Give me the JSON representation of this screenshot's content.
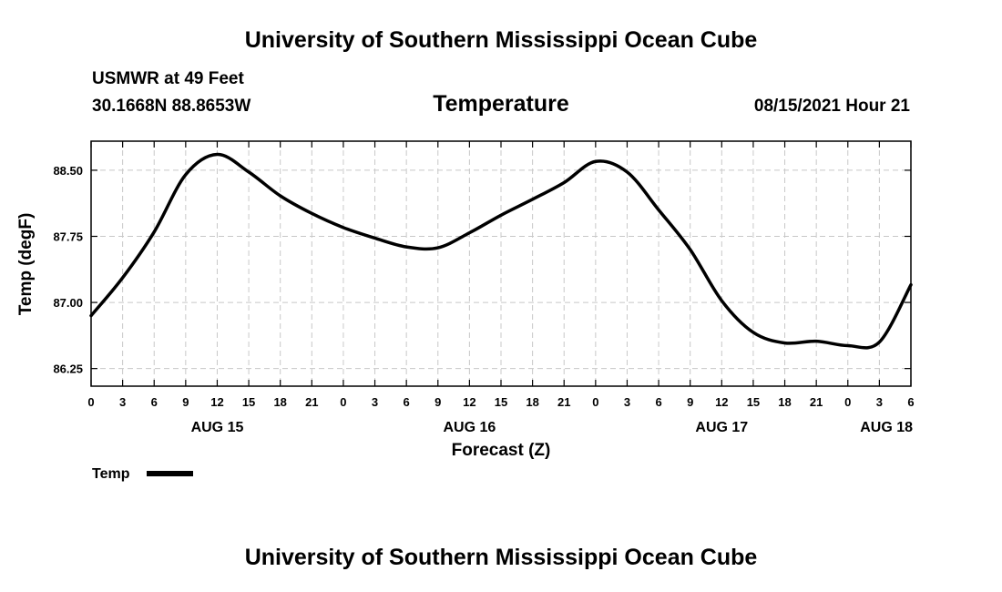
{
  "header": {
    "title": "University of Southern Mississippi Ocean Cube",
    "station": "USMWR at 49 Feet",
    "coords": "30.1668N  88.8653W",
    "datetime": "08/15/2021 Hour 21"
  },
  "footer": {
    "title": "University of Southern Mississippi Ocean Cube"
  },
  "chart_data": {
    "type": "line",
    "title": "Temperature",
    "xlabel": "Forecast (Z)",
    "ylabel": "Temp (degF)",
    "xlim": [
      0,
      78
    ],
    "ylim": [
      86.05,
      88.83
    ],
    "yticks": [
      86.25,
      87.0,
      87.75,
      88.5
    ],
    "ytick_labels": [
      "86.25",
      "87.00",
      "87.75",
      "88.50"
    ],
    "xtick_labels": [
      "0",
      "3",
      "6",
      "9",
      "12",
      "15",
      "18",
      "21",
      "0",
      "3",
      "6",
      "9",
      "12",
      "15",
      "18",
      "21",
      "0",
      "3",
      "6",
      "9",
      "12",
      "15",
      "18",
      "21",
      "0",
      "3",
      "6"
    ],
    "day_labels": [
      {
        "label": "AUG 15",
        "hour": 12
      },
      {
        "label": "AUG 16",
        "hour": 36
      },
      {
        "label": "AUG 17",
        "hour": 60
      },
      {
        "label": "AUG 18",
        "hour": 78
      }
    ],
    "grid": true,
    "legend": "bottom-left",
    "series": [
      {
        "name": "Temp",
        "color": "#000000",
        "x": [
          0,
          3,
          6,
          9,
          12,
          15,
          18,
          21,
          24,
          27,
          30,
          33,
          36,
          39,
          42,
          45,
          48,
          51,
          54,
          57,
          60,
          63,
          66,
          69,
          72,
          75,
          78
        ],
        "values": [
          86.85,
          87.28,
          87.8,
          88.45,
          88.68,
          88.48,
          88.21,
          88.01,
          87.85,
          87.73,
          87.63,
          87.62,
          87.79,
          87.99,
          88.17,
          88.36,
          88.6,
          88.48,
          88.05,
          87.6,
          87.02,
          86.66,
          86.54,
          86.56,
          86.51,
          86.55,
          87.2
        ]
      }
    ]
  }
}
